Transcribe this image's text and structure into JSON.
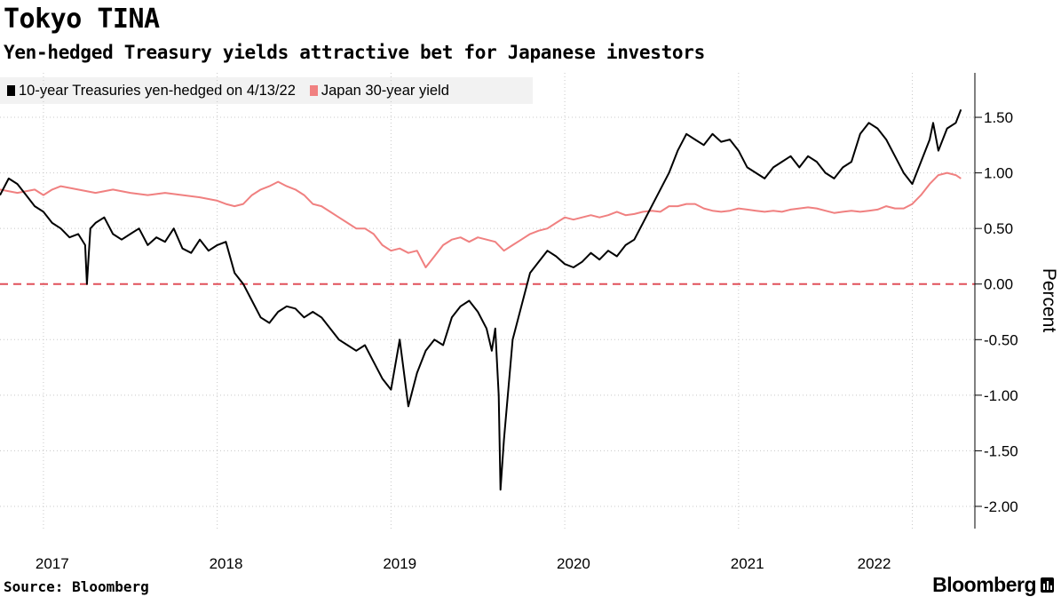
{
  "title": "Tokyo TINA",
  "subtitle": "Yen-hedged Treasury yields attractive bet for Japanese investors",
  "source": "Source: Bloomberg",
  "brand": "Bloomberg",
  "colors": {
    "series1": "#000000",
    "series2": "#f08080",
    "zero_line": "#e0505a",
    "grid": "#c8c8c8"
  },
  "chart_data": {
    "type": "line",
    "title": "Tokyo TINA",
    "ylabel": "Percent",
    "xlabel": "",
    "ylim": [
      -2.2,
      1.9
    ],
    "xlim": [
      2016.75,
      2022.36
    ],
    "yticks": [
      1.5,
      1.0,
      0.5,
      0.0,
      -0.5,
      -1.0,
      -1.5,
      -2.0
    ],
    "ytick_labels": [
      "1.50",
      "1.00",
      "0.50",
      "0.00",
      "-0.50",
      "-1.00",
      "-1.50",
      "-2.00"
    ],
    "xticks": [
      2017,
      2018,
      2019,
      2020,
      2021,
      2022
    ],
    "xtick_labels": [
      "2017",
      "2018",
      "2019",
      "2020",
      "2021",
      "2022"
    ],
    "reference_line": {
      "y": 0,
      "style": "dashed"
    },
    "legend": "top-left",
    "series": [
      {
        "name": "10-year Treasuries yen-hedged on 4/13/22",
        "color": "#000000",
        "x": [
          2016.75,
          2016.8,
          2016.85,
          2016.9,
          2016.95,
          2017.0,
          2017.05,
          2017.1,
          2017.15,
          2017.2,
          2017.24,
          2017.25,
          2017.27,
          2017.3,
          2017.35,
          2017.4,
          2017.45,
          2017.5,
          2017.55,
          2017.6,
          2017.65,
          2017.7,
          2017.75,
          2017.8,
          2017.85,
          2017.9,
          2017.95,
          2018.0,
          2018.05,
          2018.1,
          2018.15,
          2018.2,
          2018.25,
          2018.3,
          2018.35,
          2018.4,
          2018.45,
          2018.5,
          2018.55,
          2018.6,
          2018.65,
          2018.7,
          2018.75,
          2018.8,
          2018.85,
          2018.9,
          2018.95,
          2019.0,
          2019.05,
          2019.1,
          2019.15,
          2019.2,
          2019.25,
          2019.3,
          2019.35,
          2019.4,
          2019.45,
          2019.5,
          2019.55,
          2019.58,
          2019.6,
          2019.62,
          2019.63,
          2019.65,
          2019.7,
          2019.75,
          2019.8,
          2019.85,
          2019.9,
          2019.95,
          2020.0,
          2020.05,
          2020.1,
          2020.15,
          2020.2,
          2020.25,
          2020.3,
          2020.35,
          2020.4,
          2020.45,
          2020.5,
          2020.55,
          2020.6,
          2020.65,
          2020.7,
          2020.75,
          2020.8,
          2020.85,
          2020.9,
          2020.95,
          2021.0,
          2021.05,
          2021.1,
          2021.15,
          2021.2,
          2021.25,
          2021.3,
          2021.35,
          2021.4,
          2021.45,
          2021.5,
          2021.55,
          2021.6,
          2021.65,
          2021.7,
          2021.75,
          2021.8,
          2021.85,
          2021.9,
          2021.95,
          2022.0,
          2022.05,
          2022.1,
          2022.12,
          2022.15,
          2022.2,
          2022.25,
          2022.28
        ],
        "y": [
          0.8,
          0.95,
          0.9,
          0.8,
          0.7,
          0.65,
          0.55,
          0.5,
          0.42,
          0.45,
          0.35,
          0.0,
          0.5,
          0.55,
          0.6,
          0.45,
          0.4,
          0.45,
          0.5,
          0.35,
          0.42,
          0.38,
          0.5,
          0.32,
          0.28,
          0.4,
          0.3,
          0.35,
          0.38,
          0.1,
          0.0,
          -0.15,
          -0.3,
          -0.35,
          -0.25,
          -0.2,
          -0.22,
          -0.3,
          -0.25,
          -0.3,
          -0.4,
          -0.5,
          -0.55,
          -0.6,
          -0.55,
          -0.7,
          -0.85,
          -0.95,
          -0.5,
          -1.1,
          -0.8,
          -0.6,
          -0.5,
          -0.55,
          -0.3,
          -0.2,
          -0.15,
          -0.25,
          -0.4,
          -0.6,
          -0.4,
          -1.0,
          -1.85,
          -1.4,
          -0.5,
          -0.2,
          0.1,
          0.2,
          0.3,
          0.25,
          0.18,
          0.15,
          0.2,
          0.28,
          0.22,
          0.3,
          0.25,
          0.35,
          0.4,
          0.55,
          0.7,
          0.85,
          1.0,
          1.2,
          1.35,
          1.3,
          1.25,
          1.35,
          1.28,
          1.3,
          1.2,
          1.05,
          1.0,
          0.95,
          1.05,
          1.1,
          1.15,
          1.05,
          1.15,
          1.1,
          1.0,
          0.95,
          1.05,
          1.1,
          1.35,
          1.45,
          1.4,
          1.3,
          1.15,
          1.0,
          0.9,
          1.1,
          1.3,
          1.45,
          1.2,
          1.4,
          1.45,
          1.57
        ]
      },
      {
        "name": "Japan 30-year yield",
        "color": "#f08080",
        "x": [
          2016.75,
          2016.85,
          2016.95,
          2017.0,
          2017.05,
          2017.1,
          2017.2,
          2017.3,
          2017.4,
          2017.5,
          2017.6,
          2017.7,
          2017.8,
          2017.9,
          2018.0,
          2018.05,
          2018.1,
          2018.15,
          2018.2,
          2018.25,
          2018.3,
          2018.35,
          2018.4,
          2018.45,
          2018.5,
          2018.55,
          2018.6,
          2018.65,
          2018.7,
          2018.75,
          2018.8,
          2018.85,
          2018.9,
          2018.95,
          2019.0,
          2019.05,
          2019.1,
          2019.15,
          2019.2,
          2019.25,
          2019.3,
          2019.35,
          2019.4,
          2019.45,
          2019.5,
          2019.55,
          2019.6,
          2019.65,
          2019.7,
          2019.75,
          2019.8,
          2019.85,
          2019.9,
          2019.95,
          2020.0,
          2020.05,
          2020.1,
          2020.15,
          2020.2,
          2020.25,
          2020.3,
          2020.35,
          2020.4,
          2020.45,
          2020.5,
          2020.55,
          2020.6,
          2020.65,
          2020.7,
          2020.75,
          2020.8,
          2020.85,
          2020.9,
          2020.95,
          2021.0,
          2021.05,
          2021.1,
          2021.15,
          2021.2,
          2021.25,
          2021.3,
          2021.35,
          2021.4,
          2021.45,
          2021.5,
          2021.55,
          2021.6,
          2021.65,
          2021.7,
          2021.75,
          2021.8,
          2021.85,
          2021.9,
          2021.95,
          2022.0,
          2022.05,
          2022.1,
          2022.15,
          2022.2,
          2022.25,
          2022.28
        ],
        "y": [
          0.85,
          0.82,
          0.85,
          0.8,
          0.85,
          0.88,
          0.85,
          0.82,
          0.85,
          0.82,
          0.8,
          0.82,
          0.8,
          0.78,
          0.75,
          0.72,
          0.7,
          0.72,
          0.8,
          0.85,
          0.88,
          0.92,
          0.88,
          0.85,
          0.8,
          0.72,
          0.7,
          0.65,
          0.6,
          0.55,
          0.5,
          0.5,
          0.45,
          0.35,
          0.3,
          0.32,
          0.28,
          0.3,
          0.15,
          0.25,
          0.35,
          0.4,
          0.42,
          0.38,
          0.42,
          0.4,
          0.38,
          0.3,
          0.35,
          0.4,
          0.45,
          0.48,
          0.5,
          0.55,
          0.6,
          0.58,
          0.6,
          0.62,
          0.6,
          0.62,
          0.65,
          0.62,
          0.63,
          0.65,
          0.66,
          0.65,
          0.7,
          0.7,
          0.72,
          0.72,
          0.68,
          0.66,
          0.65,
          0.66,
          0.68,
          0.67,
          0.66,
          0.65,
          0.66,
          0.65,
          0.67,
          0.68,
          0.69,
          0.68,
          0.66,
          0.64,
          0.65,
          0.66,
          0.65,
          0.66,
          0.67,
          0.7,
          0.68,
          0.68,
          0.72,
          0.8,
          0.9,
          0.98,
          1.0,
          0.98,
          0.95
        ]
      }
    ]
  }
}
